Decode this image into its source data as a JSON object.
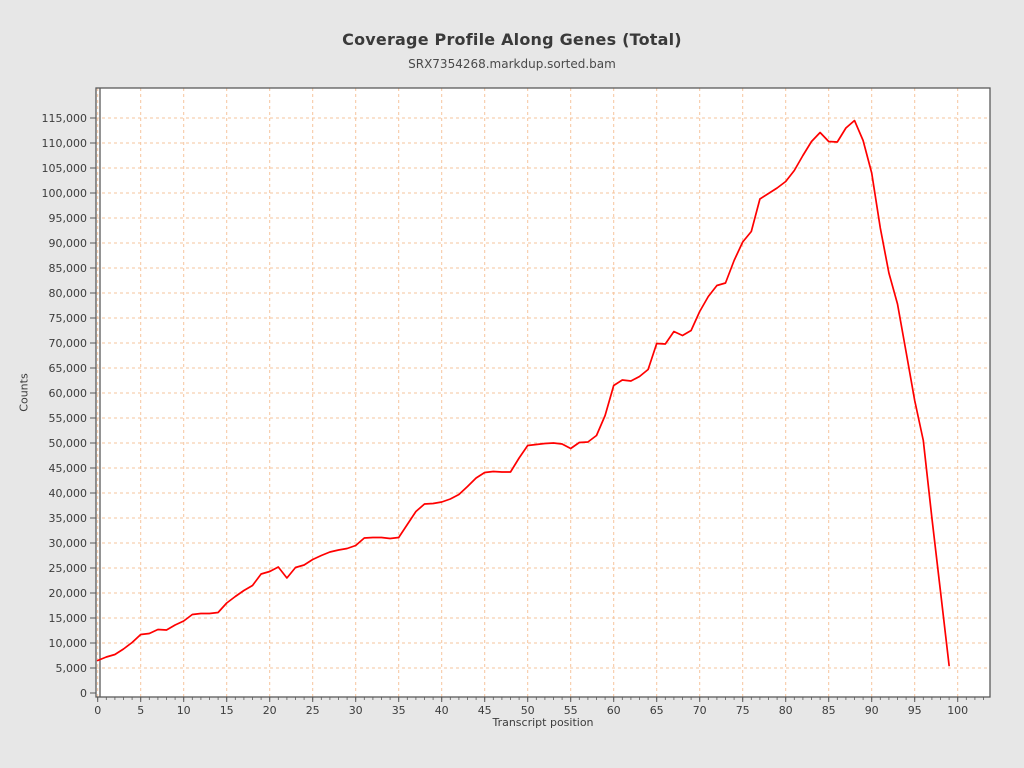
{
  "page": {
    "background": "#e7e7e7"
  },
  "chart": {
    "title": "Coverage Profile Along Genes (Total)",
    "subtitle": "SRX7354268.markdup.sorted.bam",
    "xlabel": "Transcript position",
    "ylabel": "Counts"
  },
  "chart_data": {
    "type": "line",
    "title": "Coverage Profile Along Genes (Total)",
    "subtitle": "SRX7354268.markdup.sorted.bam",
    "xlabel": "Transcript position",
    "ylabel": "Counts",
    "line_color": "#ff0000",
    "grid_color": "#f6c49d",
    "grid": true,
    "legend": "none",
    "xlim": [
      0,
      103.8
    ],
    "ylim": [
      0,
      121000
    ],
    "x_ticks": [
      0,
      5,
      10,
      15,
      20,
      25,
      30,
      35,
      40,
      45,
      50,
      55,
      60,
      65,
      70,
      75,
      80,
      85,
      90,
      95,
      100
    ],
    "y_tick_min": 0,
    "y_tick_max": 115000,
    "y_tick_step": 5000,
    "x": [
      0,
      1,
      2,
      3,
      4,
      5,
      6,
      7,
      8,
      9,
      10,
      11,
      12,
      13,
      14,
      15,
      16,
      17,
      18,
      19,
      20,
      21,
      22,
      23,
      24,
      25,
      26,
      27,
      28,
      29,
      30,
      31,
      32,
      33,
      34,
      35,
      36,
      37,
      38,
      39,
      40,
      41,
      42,
      43,
      44,
      45,
      46,
      47,
      48,
      49,
      50,
      51,
      52,
      53,
      54,
      55,
      56,
      57,
      58,
      59,
      60,
      61,
      62,
      63,
      64,
      65,
      66,
      67,
      68,
      69,
      70,
      71,
      72,
      73,
      74,
      75,
      76,
      77,
      78,
      79,
      80,
      81,
      82,
      83,
      84,
      85,
      86,
      87,
      88,
      89,
      90,
      91,
      92,
      93,
      94,
      95,
      96,
      97,
      98,
      99
    ],
    "values": [
      6500,
      7200,
      7700,
      8800,
      10100,
      11700,
      11900,
      12700,
      12600,
      13600,
      14400,
      15700,
      15900,
      15900,
      16100,
      18000,
      19300,
      20500,
      21500,
      23800,
      24300,
      25200,
      23000,
      25100,
      25600,
      26700,
      27500,
      28200,
      28600,
      28900,
      29500,
      31000,
      31100,
      31100,
      30900,
      31100,
      33700,
      36300,
      37800,
      37900,
      38200,
      38800,
      39700,
      41300,
      43000,
      44100,
      44300,
      44200,
      44200,
      47000,
      49500,
      49700,
      49900,
      50000,
      49800,
      48900,
      50100,
      50200,
      51500,
      55500,
      61500,
      62600,
      62400,
      63300,
      64700,
      69900,
      69800,
      72300,
      71500,
      72500,
      76300,
      79300,
      81500,
      82000,
      86500,
      90200,
      92300,
      98800,
      99900,
      101000,
      102300,
      104500,
      107500,
      110300,
      112100,
      110300,
      110200,
      113000,
      114500,
      110500,
      104000,
      93000,
      84000,
      77800,
      68200,
      58500,
      50500,
      35000,
      20300,
      5500
    ]
  }
}
